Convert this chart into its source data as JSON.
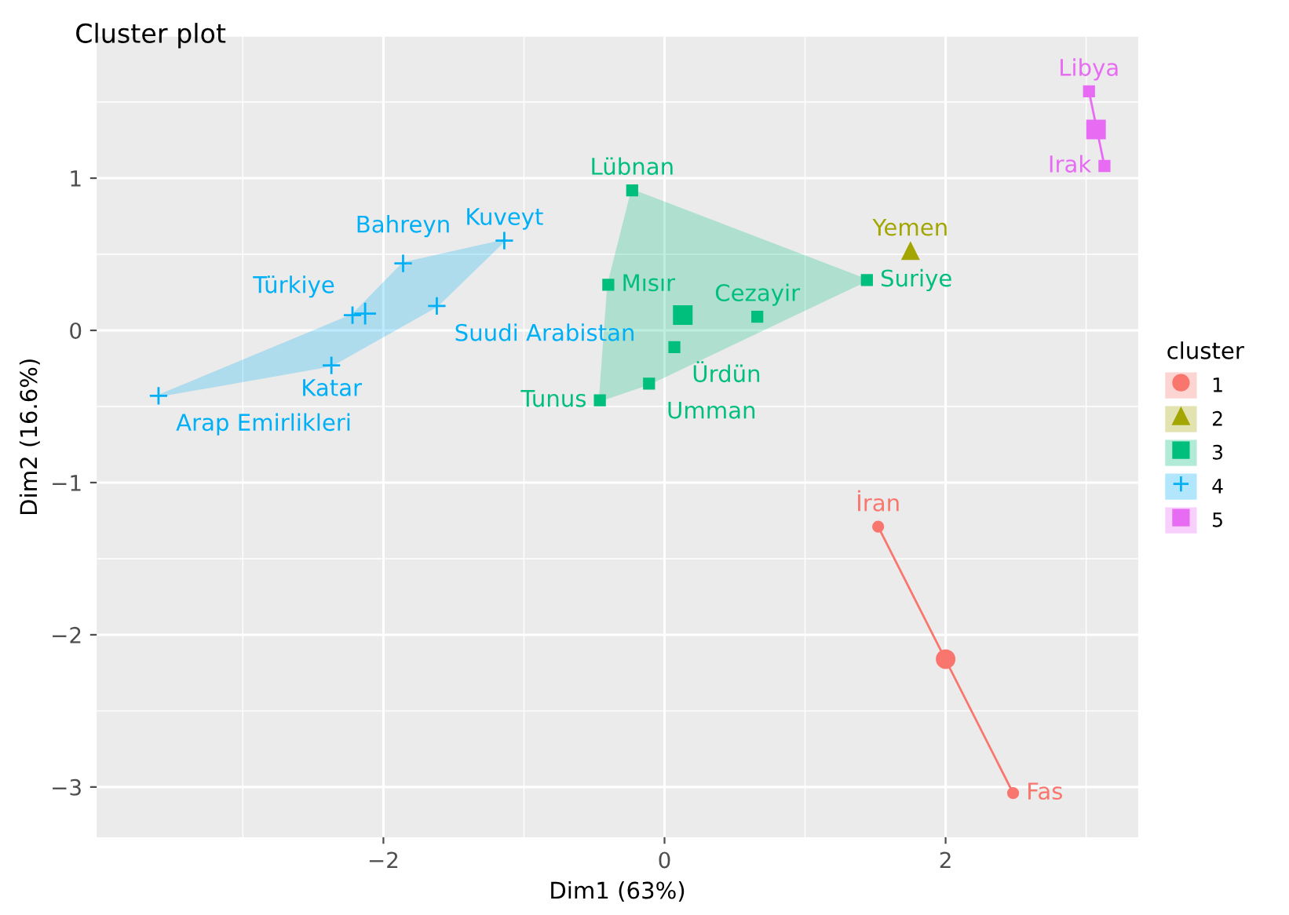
{
  "chart_data": {
    "type": "scatter",
    "title": "Cluster plot",
    "xlabel": "Dim1 (63%)",
    "ylabel": "Dim2 (16.6%)",
    "legend_title": "cluster",
    "legend": "right",
    "grid": true,
    "xlim": [
      -4.04,
      3.37
    ],
    "ylim": [
      -3.33,
      1.93
    ],
    "xticks": [
      -2,
      0,
      2
    ],
    "yticks": [
      -3,
      -2,
      -1,
      0,
      1
    ],
    "series": [
      {
        "type": "line",
        "color": "#f8766d",
        "x": [
          1.52,
          2.48
        ],
        "values": [
          -1.29,
          -3.04
        ]
      },
      {
        "type": "area",
        "color": "#00bf7d",
        "x": [
          -0.23,
          1.44,
          -0.11,
          -0.46,
          -0.4
        ],
        "values": [
          0.92,
          0.33,
          -0.35,
          -0.46,
          0.3
        ]
      },
      {
        "type": "area",
        "color": "#00b0f6",
        "x": [
          -3.6,
          -2.37,
          -1.62,
          -1.14,
          -1.86,
          -2.22
        ],
        "values": [
          -0.43,
          -0.23,
          0.16,
          0.59,
          0.44,
          0.1
        ]
      },
      {
        "type": "line",
        "color": "#e76bf3",
        "x": [
          3.02,
          3.13
        ],
        "values": [
          1.57,
          1.08
        ]
      },
      {
        "name": "1",
        "color": "#f8766d",
        "marker": "circle",
        "x": [
          1.52,
          2.48
        ],
        "values": [
          -1.29,
          -3.04
        ]
      },
      {
        "name": "2",
        "color": "#a3a500",
        "marker": "triangle",
        "x": [
          1.75
        ],
        "values": [
          0.52
        ]
      },
      {
        "name": "3",
        "color": "#00bf7d",
        "marker": "square",
        "x": [
          -0.23,
          -0.4,
          -0.46,
          -0.11,
          0.07,
          0.66,
          1.44
        ],
        "values": [
          0.92,
          0.3,
          -0.46,
          -0.35,
          -0.11,
          0.09,
          0.33
        ]
      },
      {
        "name": "4",
        "color": "#00b0f6",
        "marker": "cross",
        "x": [
          -3.6,
          -2.37,
          -2.22,
          -1.62,
          -1.86,
          -1.14
        ],
        "values": [
          -0.43,
          -0.23,
          0.1,
          0.16,
          0.44,
          0.59
        ]
      },
      {
        "name": "5",
        "color": "#e76bf3",
        "marker": "square",
        "x": [
          3.02,
          3.13
        ],
        "values": [
          1.57,
          1.08
        ]
      },
      {
        "type": "bubble",
        "color": "#f8766d",
        "marker": "circle",
        "x": [
          2.0
        ],
        "values": [
          -2.16
        ]
      },
      {
        "type": "bubble",
        "color": "#00bf7d",
        "marker": "square",
        "x": [
          0.13
        ],
        "values": [
          0.1
        ]
      },
      {
        "type": "bubble",
        "color": "#00b0f6",
        "marker": "cross",
        "x": [
          -2.13
        ],
        "values": [
          0.11
        ]
      },
      {
        "type": "bubble",
        "color": "#e76bf3",
        "marker": "square",
        "x": [
          3.07
        ],
        "values": [
          1.32
        ]
      }
    ],
    "annotations": [
      {
        "text": "İran",
        "x": 1.52,
        "y": -1.29
      },
      {
        "text": "Fas",
        "x": 2.48,
        "y": -3.04
      },
      {
        "text": "Yemen",
        "x": 1.75,
        "y": 0.52
      },
      {
        "text": "Lübnan",
        "x": -0.23,
        "y": 0.92
      },
      {
        "text": "Mısır",
        "x": -0.4,
        "y": 0.3
      },
      {
        "text": "Tunus",
        "x": -0.46,
        "y": -0.46
      },
      {
        "text": "Umman",
        "x": -0.11,
        "y": -0.35
      },
      {
        "text": "Ürdün",
        "x": 0.07,
        "y": -0.11
      },
      {
        "text": "Cezayir",
        "x": 0.66,
        "y": 0.09
      },
      {
        "text": "Suriye",
        "x": 1.44,
        "y": 0.33
      },
      {
        "text": "Arap Emirlikleri",
        "x": -3.6,
        "y": -0.43
      },
      {
        "text": "Katar",
        "x": -2.37,
        "y": -0.23
      },
      {
        "text": "Türkiye",
        "x": -2.22,
        "y": 0.1
      },
      {
        "text": "Suudi Arabistan",
        "x": -1.62,
        "y": 0.16
      },
      {
        "text": "Bahreyn",
        "x": -1.86,
        "y": 0.44
      },
      {
        "text": "Kuveyt",
        "x": -1.14,
        "y": 0.59
      },
      {
        "text": "Libya",
        "x": 3.02,
        "y": 1.57
      },
      {
        "text": "Irak",
        "x": 3.13,
        "y": 1.08
      }
    ]
  }
}
